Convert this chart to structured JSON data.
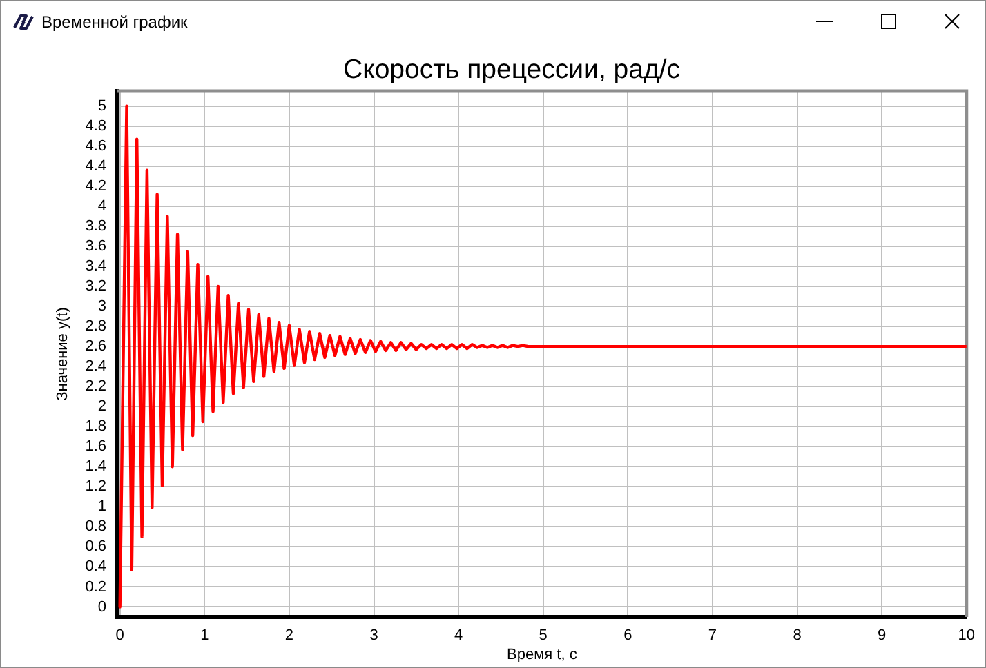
{
  "chart_data": {
    "type": "line",
    "title": "Скорость прецессии, рад/с",
    "xlabel": "Время t, с",
    "ylabel": "Значение y(t)",
    "annotations": [
      "Временной график"
    ],
    "x": [
      0,
      0.08,
      0.14,
      0.2,
      0.26,
      0.32,
      0.38,
      0.44,
      0.5,
      0.56,
      0.62,
      0.68,
      0.74,
      0.8,
      0.86,
      0.92,
      0.98,
      1.04,
      1.1,
      1.16,
      1.22,
      1.28,
      1.34,
      1.4,
      1.46,
      1.52,
      1.58,
      1.64,
      1.7,
      1.76,
      1.82,
      1.88,
      1.94,
      2,
      2.06,
      2.12,
      2.18,
      2.24,
      2.3,
      2.36,
      2.42,
      2.48,
      2.54,
      2.6,
      2.66,
      2.72,
      2.78,
      2.84,
      2.9,
      2.96,
      3.02,
      3.08,
      3.14,
      3.2,
      3.26,
      3.32,
      3.38,
      3.44,
      3.5,
      3.56,
      3.62,
      3.68,
      3.74,
      3.8,
      3.86,
      3.92,
      3.98,
      4.04,
      4.1,
      4.16,
      4.22,
      4.28,
      4.34,
      4.4,
      4.46,
      4.52,
      4.58,
      4.64,
      4.7,
      4.76,
      4.82,
      10
    ],
    "series": [
      {
        "color": "#ff0000",
        "values": [
          0,
          5,
          0.37,
          4.67,
          0.7,
          4.36,
          0.99,
          4.12,
          1.21,
          3.9,
          1.4,
          3.72,
          1.57,
          3.55,
          1.71,
          3.42,
          1.85,
          3.3,
          1.95,
          3.2,
          2.04,
          3.11,
          2.13,
          3.03,
          2.19,
          2.97,
          2.25,
          2.92,
          2.3,
          2.88,
          2.35,
          2.84,
          2.38,
          2.81,
          2.41,
          2.77,
          2.44,
          2.75,
          2.47,
          2.73,
          2.49,
          2.71,
          2.51,
          2.7,
          2.52,
          2.68,
          2.53,
          2.67,
          2.54,
          2.66,
          2.55,
          2.65,
          2.56,
          2.64,
          2.56,
          2.64,
          2.57,
          2.63,
          2.57,
          2.62,
          2.58,
          2.62,
          2.58,
          2.62,
          2.58,
          2.62,
          2.58,
          2.62,
          2.58,
          2.62,
          2.59,
          2.61,
          2.59,
          2.61,
          2.59,
          2.61,
          2.59,
          2.61,
          2.6,
          2.61,
          2.6,
          2.6
        ]
      }
    ],
    "xlim": [
      -0.03,
      10
    ],
    "ylim": [
      -0.1,
      5.15
    ],
    "xticks": [
      0,
      1,
      2,
      3,
      4,
      5,
      6,
      7,
      8,
      9,
      10
    ],
    "yticks": [
      0,
      0.2,
      0.4,
      0.6,
      0.8,
      1,
      1.2,
      1.4,
      1.6,
      1.8,
      2,
      2.2,
      2.4,
      2.6,
      2.8,
      3,
      3.2,
      3.4,
      3.6,
      3.8,
      4,
      4.2,
      4.4,
      4.6,
      4.8,
      5
    ],
    "grid": true,
    "marker": "none",
    "line_style": "solid"
  }
}
